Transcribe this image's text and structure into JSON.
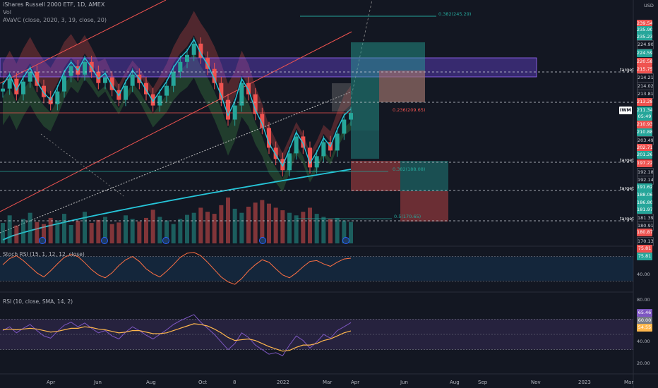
{
  "header": {
    "title": "iShares Russell 2000 ETF, 1D, AMEX",
    "vol_label": "Vol",
    "indicator": "AVaVC (close, 2020, 3, 19, close, 20)",
    "currency": "USD"
  },
  "ticker_badge": "IWM",
  "stoch": {
    "label": "Stoch RSI (15, 1, 12, 12, close)",
    "tags": [
      "75.81",
      "75.81"
    ],
    "axis": [
      "40.00"
    ],
    "upper": 80,
    "lower": 20
  },
  "rsi": {
    "label": "RSI (10, close, SMA, 14, 2)",
    "tags": [
      "65.46",
      "60.00",
      "54.55"
    ],
    "axis": [
      "80.00",
      "40.00",
      "20.00"
    ],
    "upper": 70,
    "lower": 30
  },
  "price_tags": [
    {
      "v": "239.54",
      "c": "#ef5350"
    },
    {
      "v": "235.90",
      "c": "#26a69a"
    },
    {
      "v": "235.23",
      "c": "#26a69a"
    },
    {
      "v": "224.90",
      "c": "#131722"
    },
    {
      "v": "224.59",
      "c": "#26a69a"
    },
    {
      "v": "220.58",
      "c": "#ef5350"
    },
    {
      "v": "215.75",
      "c": "#ef5350"
    },
    {
      "v": "214.21",
      "c": "#131722"
    },
    {
      "v": "214.02",
      "c": "#131722"
    },
    {
      "v": "213.81",
      "c": "#131722"
    },
    {
      "v": "213.28",
      "c": "#ef5350"
    },
    {
      "v": "211.34",
      "c": "#26a69a"
    },
    {
      "v": "05:49",
      "c": "#26a69a"
    },
    {
      "v": "210.93",
      "c": "#ef5350"
    },
    {
      "v": "210.88",
      "c": "#26a69a"
    },
    {
      "v": "203.49",
      "c": "#131722"
    },
    {
      "v": "202.71",
      "c": "#ef5350"
    },
    {
      "v": "201.26",
      "c": "#26a69a"
    },
    {
      "v": "197.22",
      "c": "#ef5350"
    },
    {
      "v": "192.18",
      "c": "#131722"
    },
    {
      "v": "192.14",
      "c": "#131722"
    },
    {
      "v": "191.62",
      "c": "#26a69a"
    },
    {
      "v": "188.06",
      "c": "#26a69a"
    },
    {
      "v": "186.80",
      "c": "#26a69a"
    },
    {
      "v": "181.97",
      "c": "#26a69a"
    },
    {
      "v": "181.39",
      "c": "#131722"
    },
    {
      "v": "180.91",
      "c": "#131722"
    },
    {
      "v": "180.87",
      "c": "#ef5350"
    },
    {
      "v": "170.13",
      "c": "#131722"
    }
  ],
  "targets": [
    "target",
    "target",
    "target",
    "target"
  ],
  "fib_levels": [
    {
      "label": "0.382(245.29)",
      "color": "#26a69a"
    },
    {
      "label": "0.236(209.65)",
      "color": "#ef5350"
    },
    {
      "label": "0.382(188.08)",
      "color": "#26a69a"
    },
    {
      "label": "0.5(170.65)",
      "color": "#26a69a"
    }
  ],
  "time_axis": [
    "Apr",
    "Jun",
    "Aug",
    "Oct",
    "8",
    "2022",
    "Mar",
    "Apr",
    "Jun",
    "Aug",
    "Sep",
    "Nov",
    "2023",
    "Mar"
  ],
  "chart_data": {
    "type": "candlestick",
    "symbol": "IWM",
    "title": "iShares Russell 2000 ETF, 1D, AMEX",
    "close_series": [
      220.0,
      223.5,
      218.0,
      222.5,
      226.0,
      221.0,
      217.0,
      214.5,
      219.0,
      224.5,
      228.0,
      225.0,
      229.5,
      226.0,
      222.0,
      224.0,
      219.5,
      216.0,
      221.0,
      225.0,
      222.0,
      218.0,
      214.0,
      217.5,
      221.0,
      226.0,
      229.5,
      232.0,
      236.0,
      231.0,
      227.0,
      222.0,
      216.0,
      209.0,
      214.0,
      222.0,
      218.0,
      211.0,
      206.0,
      199.0,
      195.0,
      191.0,
      197.0,
      203.0,
      199.0,
      192.0,
      196.0,
      201.0,
      198.0,
      204.0,
      209.0,
      211.34
    ],
    "ylim": [
      165,
      250
    ],
    "pane_ranges": {
      "stoch": [
        0,
        100
      ],
      "rsi": [
        0,
        100
      ]
    },
    "stoch_k": [
      60,
      75,
      82,
      70,
      55,
      40,
      30,
      45,
      62,
      78,
      85,
      80,
      65,
      48,
      35,
      28,
      40,
      58,
      72,
      80,
      68,
      50,
      38,
      30,
      44,
      60,
      78,
      88,
      90,
      82,
      66,
      48,
      30,
      18,
      12,
      26,
      45,
      60,
      72,
      66,
      50,
      35,
      28,
      40,
      55,
      68,
      70,
      62,
      56,
      66,
      74,
      75.81
    ],
    "rsi_series": [
      55,
      60,
      52,
      58,
      63,
      55,
      48,
      45,
      54,
      62,
      66,
      60,
      65,
      58,
      52,
      55,
      48,
      44,
      53,
      60,
      55,
      49,
      44,
      50,
      56,
      63,
      68,
      72,
      76,
      66,
      58,
      50,
      40,
      30,
      38,
      52,
      46,
      36,
      30,
      24,
      26,
      22,
      36,
      48,
      42,
      32,
      40,
      50,
      45,
      55,
      60,
      65.46
    ],
    "rsi_ma": [
      56,
      57,
      56,
      57,
      58,
      57,
      55,
      53,
      54,
      56,
      58,
      58,
      60,
      59,
      57,
      56,
      54,
      52,
      53,
      55,
      55,
      53,
      51,
      51,
      52,
      55,
      58,
      61,
      64,
      63,
      61,
      57,
      52,
      46,
      42,
      43,
      44,
      42,
      38,
      34,
      31,
      28,
      29,
      33,
      36,
      36,
      38,
      42,
      44,
      48,
      52,
      54.55
    ],
    "vol_series": [
      40,
      55,
      35,
      48,
      60,
      42,
      38,
      50,
      45,
      58,
      36,
      44,
      62,
      40,
      46,
      52,
      38,
      41,
      55,
      48,
      43,
      50,
      66,
      52,
      45,
      38,
      48,
      56,
      60,
      70,
      62,
      58,
      75,
      90,
      68,
      60,
      72,
      80,
      85,
      78,
      70,
      65,
      60,
      55,
      62,
      70,
      58,
      52,
      48,
      50,
      45,
      42
    ],
    "y_axis_labels": [
      "239.54",
      "220.58",
      "211.34",
      "201.26",
      "186.80",
      "170.13"
    ],
    "x_labels": [
      "Apr",
      "Jun",
      "Aug",
      "Oct",
      "8",
      "2022",
      "Mar",
      "Apr",
      "Jun",
      "Aug",
      "Sep",
      "Nov",
      "2023",
      "Mar"
    ],
    "grid": false
  }
}
